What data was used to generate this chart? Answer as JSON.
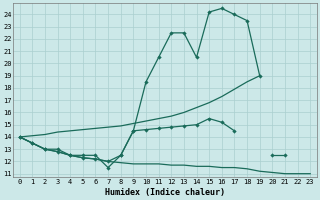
{
  "xlabel": "Humidex (Indice chaleur)",
  "x_values": [
    0,
    1,
    2,
    3,
    4,
    5,
    6,
    7,
    8,
    9,
    10,
    11,
    12,
    13,
    14,
    15,
    16,
    17,
    18,
    19,
    20,
    21,
    22,
    23
  ],
  "line1_y": [
    14,
    13.5,
    13.0,
    13.0,
    12.5,
    12.5,
    12.5,
    11.5,
    12.5,
    14.5,
    18.5,
    20.5,
    22.5,
    22.5,
    20.5,
    24.2,
    24.5,
    24.0,
    23.5,
    19.0,
    null,
    null,
    null,
    null
  ],
  "line2_y": [
    14.0,
    13.5,
    13.0,
    12.8,
    12.5,
    12.3,
    12.2,
    12.0,
    11.9,
    11.8,
    11.8,
    11.8,
    11.7,
    11.7,
    11.6,
    11.6,
    11.5,
    11.5,
    11.4,
    11.2,
    11.1,
    11.0,
    11.0,
    11.0
  ],
  "line3_y": [
    14.0,
    14.1,
    14.2,
    14.4,
    14.5,
    14.6,
    14.7,
    14.8,
    14.9,
    15.1,
    15.3,
    15.5,
    15.7,
    16.0,
    16.4,
    16.8,
    17.3,
    17.9,
    18.5,
    19.0,
    null,
    null,
    null,
    null
  ],
  "line4_y": [
    14,
    13.5,
    13.0,
    12.8,
    12.5,
    12.3,
    12.2,
    12.0,
    12.5,
    14.5,
    14.6,
    14.7,
    14.8,
    14.9,
    15.0,
    15.5,
    15.2,
    14.5,
    null,
    null,
    12.5,
    12.5,
    null,
    null
  ],
  "ylim_min": 10.7,
  "ylim_max": 24.9,
  "xlim_min": -0.5,
  "xlim_max": 23.5,
  "yticks": [
    11,
    12,
    13,
    14,
    15,
    16,
    17,
    18,
    19,
    20,
    21,
    22,
    23,
    24
  ],
  "xticks": [
    0,
    1,
    2,
    3,
    4,
    5,
    6,
    7,
    8,
    9,
    10,
    11,
    12,
    13,
    14,
    15,
    16,
    17,
    18,
    19,
    20,
    21,
    22,
    23
  ],
  "line_color": "#1a6b5a",
  "bg_color": "#cce8e8",
  "grid_color": "#aacfcf",
  "spine_color": "#777777",
  "xlabel_fontsize": 6.0,
  "tick_fontsize": 5.0
}
